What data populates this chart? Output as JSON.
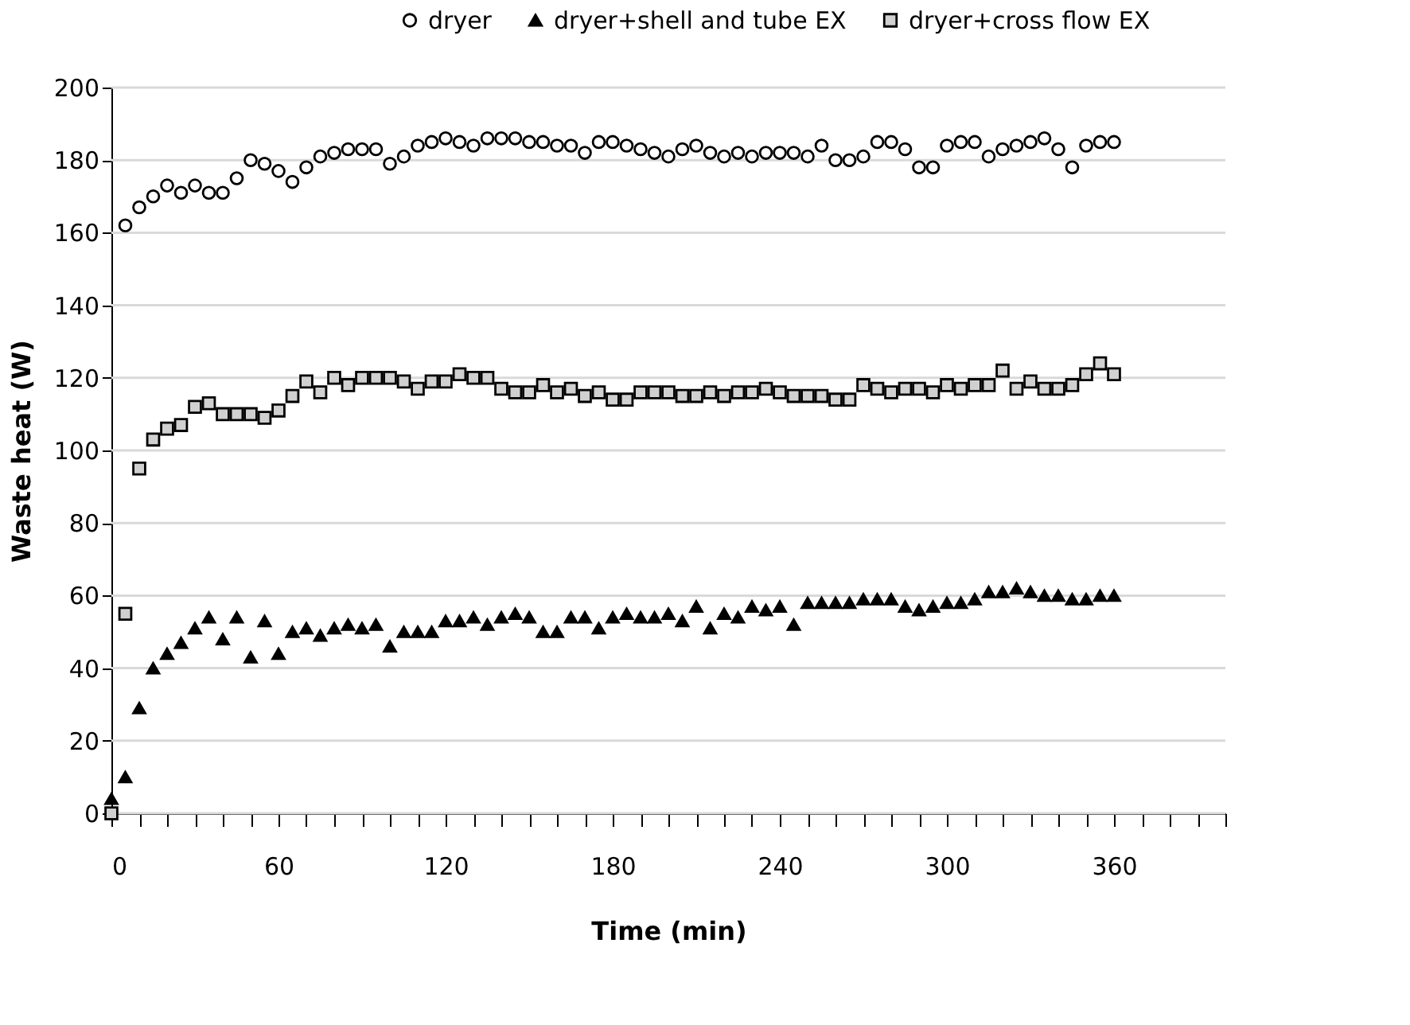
{
  "chart_data": {
    "type": "scatter",
    "xlabel": "Time (min)",
    "ylabel": "Waste heat (W)",
    "xlim": [
      0,
      400
    ],
    "xticks": [
      0,
      {
        "value": 10,
        "label": null
      },
      {
        "value": 20,
        "label": null
      },
      {
        "value": 30,
        "label": null
      },
      {
        "value": 40,
        "label": null
      },
      {
        "value": 50,
        "label": null
      },
      60,
      {
        "value": 70,
        "label": null
      },
      {
        "value": 80,
        "label": null
      },
      {
        "value": 90,
        "label": null
      },
      {
        "value": 100,
        "label": null
      },
      {
        "value": 110,
        "label": null
      },
      120,
      {
        "value": 130,
        "label": null
      },
      {
        "value": 140,
        "label": null
      },
      {
        "value": 150,
        "label": null
      },
      {
        "value": 160,
        "label": null
      },
      {
        "value": 170,
        "label": null
      },
      180,
      {
        "value": 190,
        "label": null
      },
      {
        "value": 200,
        "label": null
      },
      {
        "value": 210,
        "label": null
      },
      {
        "value": 220,
        "label": null
      },
      {
        "value": 230,
        "label": null
      },
      240,
      {
        "value": 250,
        "label": null
      },
      {
        "value": 260,
        "label": null
      },
      {
        "value": 270,
        "label": null
      },
      {
        "value": 280,
        "label": null
      },
      {
        "value": 290,
        "label": null
      },
      300,
      {
        "value": 310,
        "label": null
      },
      {
        "value": 320,
        "label": null
      },
      {
        "value": 330,
        "label": null
      },
      {
        "value": 340,
        "label": null
      },
      {
        "value": 350,
        "label": null
      },
      360,
      {
        "value": 370,
        "label": null
      },
      {
        "value": 380,
        "label": null
      },
      {
        "value": 390,
        "label": null
      },
      {
        "value": 400,
        "label": null
      }
    ],
    "ylim": [
      0,
      200
    ],
    "yticks": [
      0,
      20,
      40,
      60,
      80,
      100,
      120,
      140,
      160,
      180,
      200
    ],
    "grid": "y",
    "legend": "top right",
    "series": [
      {
        "name": "dryer",
        "color": "#ffffff",
        "marker": "circle",
        "x": [
          5,
          10,
          15,
          20,
          25,
          30,
          35,
          40,
          45,
          50,
          55,
          60,
          65,
          70,
          75,
          80,
          85,
          90,
          95,
          100,
          105,
          110,
          115,
          120,
          125,
          130,
          135,
          140,
          145,
          150,
          155,
          160,
          165,
          170,
          175,
          180,
          185,
          190,
          195,
          200,
          205,
          210,
          215,
          220,
          225,
          230,
          235,
          240,
          245,
          250,
          255,
          260,
          265,
          270,
          275,
          280,
          285,
          290,
          295,
          300,
          305,
          310,
          315,
          320,
          325,
          330,
          335,
          340,
          345,
          350,
          355,
          360
        ],
        "values": [
          162,
          167,
          170,
          173,
          171,
          173,
          171,
          171,
          175,
          180,
          179,
          177,
          174,
          178,
          181,
          182,
          183,
          183,
          183,
          179,
          181,
          184,
          185,
          186,
          185,
          184,
          186,
          186,
          186,
          185,
          185,
          184,
          184,
          182,
          185,
          185,
          184,
          183,
          182,
          181,
          183,
          184,
          182,
          181,
          182,
          181,
          182,
          182,
          182,
          181,
          184,
          180,
          180,
          181,
          185,
          185,
          183,
          178,
          178,
          184,
          185,
          185,
          181,
          183,
          184,
          185,
          186,
          183,
          178,
          184,
          185,
          185
        ]
      },
      {
        "name": "dryer+shell and tube EX",
        "color": "#000000",
        "marker": "triangle",
        "x": [
          0,
          5,
          10,
          15,
          20,
          25,
          30,
          35,
          40,
          45,
          50,
          55,
          60,
          65,
          70,
          75,
          80,
          85,
          90,
          95,
          100,
          105,
          110,
          115,
          120,
          125,
          130,
          135,
          140,
          145,
          150,
          155,
          160,
          165,
          170,
          175,
          180,
          185,
          190,
          195,
          200,
          205,
          210,
          215,
          220,
          225,
          230,
          235,
          240,
          245,
          250,
          255,
          260,
          265,
          270,
          275,
          280,
          285,
          290,
          295,
          300,
          305,
          310,
          315,
          320,
          325,
          330,
          335,
          340,
          345,
          350,
          355,
          360
        ],
        "values": [
          4,
          10,
          29,
          40,
          44,
          47,
          51,
          54,
          48,
          54,
          43,
          53,
          44,
          50,
          51,
          49,
          51,
          52,
          51,
          52,
          46,
          50,
          50,
          50,
          53,
          53,
          54,
          52,
          54,
          55,
          54,
          50,
          50,
          54,
          54,
          51,
          54,
          55,
          54,
          54,
          55,
          53,
          57,
          51,
          55,
          54,
          57,
          56,
          57,
          52,
          58,
          58,
          58,
          58,
          59,
          59,
          59,
          57,
          56,
          57,
          58,
          58,
          59,
          61,
          61,
          62,
          61,
          60,
          60,
          59,
          59,
          60,
          60
        ]
      },
      {
        "name": "dryer+cross flow EX",
        "color": "#d0d0d0",
        "marker": "square",
        "x": [
          0,
          5,
          10,
          15,
          20,
          25,
          30,
          35,
          40,
          45,
          50,
          55,
          60,
          65,
          70,
          75,
          80,
          85,
          90,
          95,
          100,
          105,
          110,
          115,
          120,
          125,
          130,
          135,
          140,
          145,
          150,
          155,
          160,
          165,
          170,
          175,
          180,
          185,
          190,
          195,
          200,
          205,
          210,
          215,
          220,
          225,
          230,
          235,
          240,
          245,
          250,
          255,
          260,
          265,
          270,
          275,
          280,
          285,
          290,
          295,
          300,
          305,
          310,
          315,
          320,
          325,
          330,
          335,
          340,
          345,
          350,
          355,
          360
        ],
        "values": [
          0,
          55,
          95,
          103,
          106,
          107,
          112,
          113,
          110,
          110,
          110,
          109,
          111,
          115,
          119,
          116,
          120,
          118,
          120,
          120,
          120,
          119,
          117,
          119,
          119,
          121,
          120,
          120,
          117,
          116,
          116,
          118,
          116,
          117,
          115,
          116,
          114,
          114,
          116,
          116,
          116,
          115,
          115,
          116,
          115,
          116,
          116,
          117,
          116,
          115,
          115,
          115,
          114,
          114,
          118,
          117,
          116,
          117,
          117,
          116,
          118,
          117,
          118,
          118,
          122,
          117,
          119,
          117,
          117,
          118,
          121,
          124,
          121
        ]
      }
    ]
  }
}
